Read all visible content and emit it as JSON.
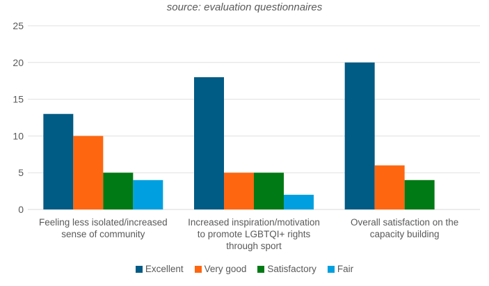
{
  "chart_data": {
    "type": "bar",
    "subtitle": "source: evaluation questionnaires",
    "categories": [
      "Feeling less isolated/increased sense of community",
      "Increased inspiration/motivation to promote LGBTQI+ rights through sport",
      "Overall satisfaction on the capacity building"
    ],
    "category_lines": [
      [
        "Feeling less isolated/increased",
        "sense of community"
      ],
      [
        "Increased inspiration/motivation",
        "to promote LGBTQI+ rights",
        "through sport"
      ],
      [
        "Overall satisfaction on the",
        "capacity building"
      ]
    ],
    "series": [
      {
        "name": "Excellent",
        "color": "#005b85",
        "values": [
          13,
          18,
          20
        ]
      },
      {
        "name": "Very good",
        "color": "#ff6610",
        "values": [
          10,
          5,
          6
        ]
      },
      {
        "name": "Satisfactory",
        "color": "#007a14",
        "values": [
          5,
          5,
          4
        ]
      },
      {
        "name": "Fair",
        "color": "#00a0e0",
        "values": [
          4,
          2,
          0
        ]
      }
    ],
    "ylim": [
      0,
      25
    ],
    "yticks": [
      0,
      5,
      10,
      15,
      20,
      25
    ],
    "grid": true,
    "legend_position": "bottom"
  }
}
